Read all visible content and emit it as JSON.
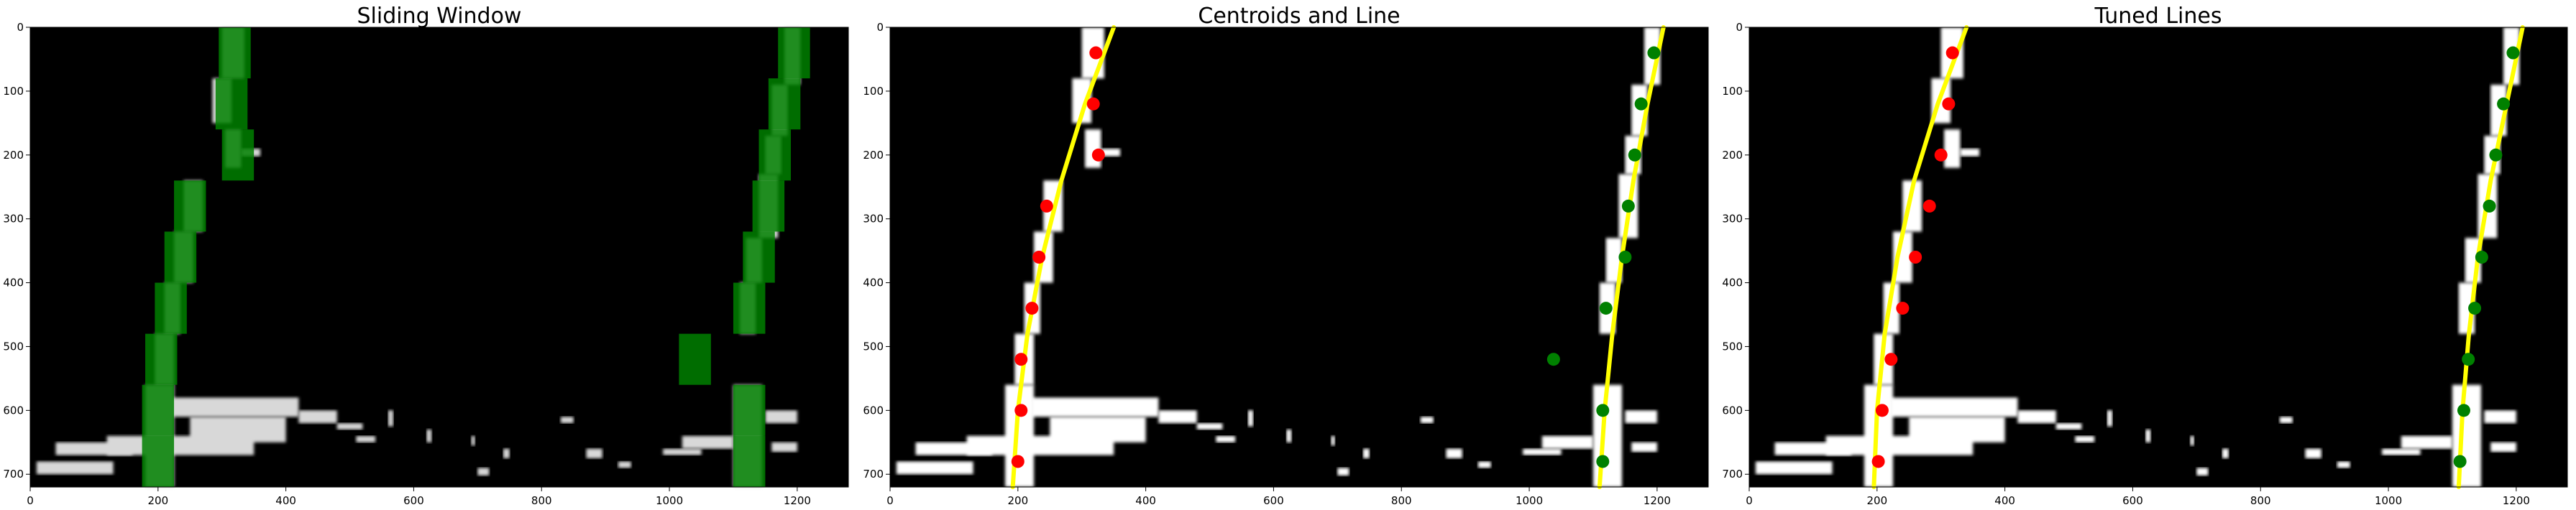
{
  "chart_data": [
    {
      "type": "scatter",
      "title": "Sliding Window",
      "xlim": [
        0,
        1280
      ],
      "ylim": [
        720,
        0
      ],
      "xticks": [
        "0",
        "200",
        "400",
        "600",
        "800",
        "1000",
        "1200"
      ],
      "yticks": [
        "0",
        "100",
        "200",
        "300",
        "400",
        "500",
        "600",
        "700"
      ],
      "grid": false,
      "background_color": "#000000",
      "window_color": "#008000",
      "windows": [
        {
          "x": [
            295,
            345
          ],
          "y": [
            0,
            80
          ]
        },
        {
          "x": [
            290,
            340
          ],
          "y": [
            80,
            160
          ]
        },
        {
          "x": [
            300,
            350
          ],
          "y": [
            160,
            240
          ]
        },
        {
          "x": [
            225,
            275
          ],
          "y": [
            240,
            320
          ]
        },
        {
          "x": [
            210,
            260
          ],
          "y": [
            320,
            400
          ]
        },
        {
          "x": [
            195,
            245
          ],
          "y": [
            400,
            480
          ]
        },
        {
          "x": [
            180,
            230
          ],
          "y": [
            480,
            560
          ]
        },
        {
          "x": [
            175,
            225
          ],
          "y": [
            560,
            640
          ]
        },
        {
          "x": [
            175,
            225
          ],
          "y": [
            640,
            720
          ]
        },
        {
          "x": [
            1170,
            1220
          ],
          "y": [
            0,
            80
          ]
        },
        {
          "x": [
            1155,
            1205
          ],
          "y": [
            80,
            160
          ]
        },
        {
          "x": [
            1140,
            1190
          ],
          "y": [
            160,
            240
          ]
        },
        {
          "x": [
            1130,
            1180
          ],
          "y": [
            240,
            320
          ]
        },
        {
          "x": [
            1115,
            1165
          ],
          "y": [
            320,
            400
          ]
        },
        {
          "x": [
            1100,
            1150
          ],
          "y": [
            400,
            480
          ]
        },
        {
          "x": [
            1015,
            1065
          ],
          "y": [
            480,
            560
          ]
        },
        {
          "x": [
            1100,
            1150
          ],
          "y": [
            560,
            640
          ]
        },
        {
          "x": [
            1100,
            1150
          ],
          "y": [
            640,
            720
          ]
        }
      ]
    },
    {
      "type": "scatter",
      "title": "Centroids and Line",
      "xlim": [
        0,
        1280
      ],
      "ylim": [
        720,
        0
      ],
      "xticks": [
        "0",
        "200",
        "400",
        "600",
        "800",
        "1000",
        "1200"
      ],
      "yticks": [
        "0",
        "100",
        "200",
        "300",
        "400",
        "500",
        "600",
        "700"
      ],
      "grid": false,
      "background_color": "#000000",
      "series": [
        {
          "name": "",
          "color": "#ff0000",
          "x": [
            322,
            318,
            326,
            245,
            233,
            222,
            205,
            205,
            200
          ],
          "y": [
            40,
            120,
            200,
            280,
            360,
            440,
            520,
            600,
            680
          ]
        },
        {
          "name": "",
          "color": "#008000",
          "x": [
            1195,
            1175,
            1165,
            1155,
            1150,
            1120,
            1038,
            1115,
            1115
          ],
          "y": [
            40,
            120,
            200,
            280,
            360,
            440,
            520,
            600,
            680
          ]
        }
      ],
      "lines": [
        {
          "color": "#ffff00",
          "x": [
            192,
            200,
            215,
            238,
            268,
            305,
            350
          ],
          "y": [
            720,
            600,
            480,
            360,
            240,
            120,
            0
          ]
        },
        {
          "color": "#ffff00",
          "x": [
            1110,
            1118,
            1130,
            1145,
            1163,
            1185,
            1210
          ],
          "y": [
            720,
            600,
            480,
            360,
            240,
            120,
            0
          ]
        }
      ]
    },
    {
      "type": "scatter",
      "title": "Tuned Lines",
      "xlim": [
        0,
        1280
      ],
      "ylim": [
        720,
        0
      ],
      "xticks": [
        "0",
        "200",
        "400",
        "600",
        "800",
        "1000",
        "1200"
      ],
      "yticks": [
        "0",
        "100",
        "200",
        "300",
        "400",
        "500",
        "600",
        "700"
      ],
      "grid": false,
      "background_color": "#000000",
      "series": [
        {
          "name": "",
          "color": "#ff0000",
          "x": [
            318,
            312,
            300,
            282,
            260,
            240,
            222,
            208,
            202
          ],
          "y": [
            40,
            120,
            200,
            280,
            360,
            440,
            520,
            600,
            680
          ]
        },
        {
          "name": "",
          "color": "#008000",
          "x": [
            1195,
            1180,
            1168,
            1158,
            1146,
            1135,
            1125,
            1118,
            1112
          ],
          "y": [
            40,
            120,
            200,
            280,
            360,
            440,
            520,
            600,
            680
          ]
        }
      ],
      "lines": [
        {
          "color": "#ffff00",
          "x": [
            195,
            200,
            212,
            232,
            258,
            295,
            340
          ],
          "y": [
            720,
            600,
            480,
            360,
            240,
            120,
            0
          ]
        },
        {
          "color": "#ffff00",
          "x": [
            1110,
            1116,
            1126,
            1140,
            1160,
            1185,
            1210
          ],
          "y": [
            720,
            600,
            480,
            360,
            240,
            120,
            0
          ]
        }
      ]
    }
  ]
}
